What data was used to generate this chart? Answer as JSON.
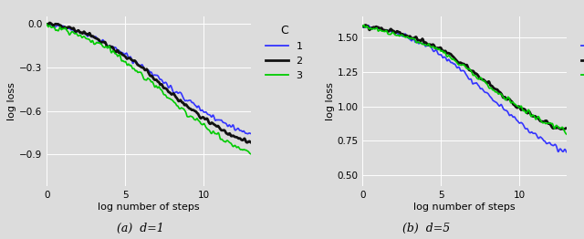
{
  "fig_width": 6.4,
  "fig_height": 2.62,
  "plot_bg_color": "#dcdcdc",
  "fig_bg_color": "#dcdcdc",
  "line_colors": [
    "#3333ff",
    "#111111",
    "#00cc00"
  ],
  "line_labels": [
    "1",
    "2",
    "3"
  ],
  "xlabel": "log number of steps",
  "ylabel": "log loss",
  "caption1": "(a)  d=1",
  "caption2": "(b)  d=5",
  "xlim": [
    0,
    13
  ],
  "xticks": [
    0,
    5,
    10
  ],
  "ylim1": [
    -1.12,
    0.05
  ],
  "yticks1": [
    0.0,
    -0.3,
    -0.6,
    -0.9
  ],
  "ylim2": [
    0.42,
    1.65
  ],
  "yticks2": [
    0.5,
    0.75,
    1.0,
    1.25,
    1.5
  ],
  "n_points": 800,
  "legend_title": "C"
}
